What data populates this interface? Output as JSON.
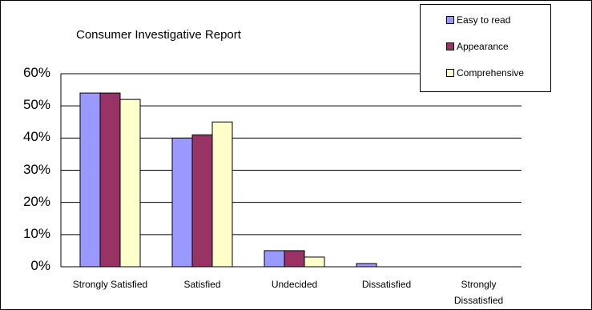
{
  "chart_data": {
    "type": "bar",
    "title": "Consumer Investigative Report",
    "xlabel": "",
    "ylabel": "",
    "categories": [
      "Strongly Satisfied",
      "Satisfied",
      "Undecided",
      "Dissatisfied",
      "Strongly Dissatisfied"
    ],
    "series": [
      {
        "name": "Easy to read",
        "color": "#9999ff",
        "values": [
          54,
          40,
          5,
          1,
          0
        ]
      },
      {
        "name": "Appearance",
        "color": "#993366",
        "values": [
          54,
          41,
          5,
          0,
          0
        ]
      },
      {
        "name": "Comprehensive",
        "color": "#ffffcc",
        "values": [
          52,
          45,
          3,
          0,
          0
        ]
      }
    ],
    "yticks": [
      "0%",
      "10%",
      "20%",
      "30%",
      "40%",
      "50%",
      "60%"
    ],
    "ylim": [
      0,
      60
    ],
    "grid": true,
    "legend_position": "top-right"
  }
}
